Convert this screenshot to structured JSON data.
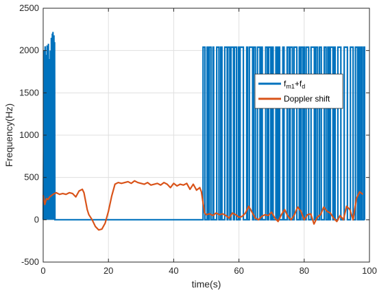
{
  "chart_data": {
    "type": "line",
    "title": "",
    "xlabel": "time(s)",
    "ylabel": "Frequency(Hz)",
    "xlim": [
      0,
      100
    ],
    "ylim": [
      -500,
      2500
    ],
    "xticks": [
      0,
      20,
      40,
      60,
      80,
      100
    ],
    "yticks": [
      -500,
      0,
      500,
      1000,
      1500,
      2000,
      2500
    ],
    "grid": true,
    "legend_position": "right",
    "series": [
      {
        "name_main": "f",
        "name_sub": "m1",
        "name_plus": "+f",
        "name_sub2": "d",
        "color": "#0072bd",
        "description": "",
        "segments": [
          {
            "x": [
              0.0,
              0.3,
              0.4,
              0.6,
              0.7,
              0.9,
              1.0,
              1.2,
              1.3,
              1.6,
              1.7,
              1.9,
              2.0,
              2.2,
              2.3,
              2.5,
              2.6,
              2.8,
              2.9,
              3.0,
              3.1,
              3.3,
              3.4,
              3.5,
              3.6,
              49.0
            ],
            "y": [
              0,
              2000,
              0,
              2050,
              0,
              1950,
              0,
              2060,
              0,
              2080,
              0,
              1900,
              0,
              2000,
              0,
              2150,
              0,
              2200,
              0,
              2220,
              0,
              2180,
              0,
              2100,
              0,
              0
            ]
          }
        ],
        "toggle_region": {
          "x_start": 49.0,
          "x_end": 98.5,
          "low": 0,
          "high": 2040
        }
      },
      {
        "name": "Doppler shift",
        "color": "#d95319",
        "x": [
          0,
          0.5,
          1,
          1.5,
          2,
          3,
          4,
          5,
          6,
          7,
          8,
          9,
          10,
          11,
          12,
          12.5,
          13,
          13.5,
          14,
          15,
          16,
          17,
          18,
          19,
          20,
          21,
          22,
          23,
          24,
          25,
          26,
          27,
          28,
          29,
          30,
          31,
          32,
          33,
          34,
          35,
          36,
          37,
          38,
          39,
          40,
          41,
          42,
          43,
          44,
          45,
          46,
          47,
          48,
          48.5,
          49,
          49.5,
          50,
          51,
          52,
          53,
          54,
          55,
          56,
          57,
          58,
          59,
          60,
          61,
          62,
          63,
          64,
          65,
          66,
          67,
          68,
          69,
          70,
          71,
          72,
          73,
          74,
          75,
          76,
          77,
          78,
          79,
          80,
          81,
          82,
          83,
          84,
          85,
          86,
          87,
          88,
          89,
          90,
          91,
          92,
          93,
          94,
          95,
          96,
          97,
          98
        ],
        "y": [
          290,
          180,
          250,
          240,
          270,
          300,
          320,
          300,
          310,
          300,
          320,
          310,
          270,
          340,
          360,
          320,
          220,
          120,
          60,
          0,
          -80,
          -120,
          -110,
          -40,
          100,
          280,
          420,
          440,
          430,
          440,
          450,
          430,
          460,
          440,
          430,
          420,
          440,
          410,
          420,
          430,
          410,
          440,
          420,
          380,
          430,
          400,
          420,
          410,
          430,
          360,
          420,
          350,
          380,
          330,
          200,
          80,
          60,
          70,
          50,
          80,
          60,
          70,
          50,
          20,
          80,
          60,
          30,
          40,
          80,
          160,
          90,
          20,
          0,
          40,
          60,
          50,
          90,
          20,
          -20,
          60,
          120,
          40,
          0,
          60,
          150,
          100,
          0,
          60,
          70,
          -50,
          30,
          60,
          150,
          100,
          80,
          20,
          -20,
          50,
          0,
          160,
          120,
          0,
          250,
          330,
          300
        ]
      }
    ]
  }
}
